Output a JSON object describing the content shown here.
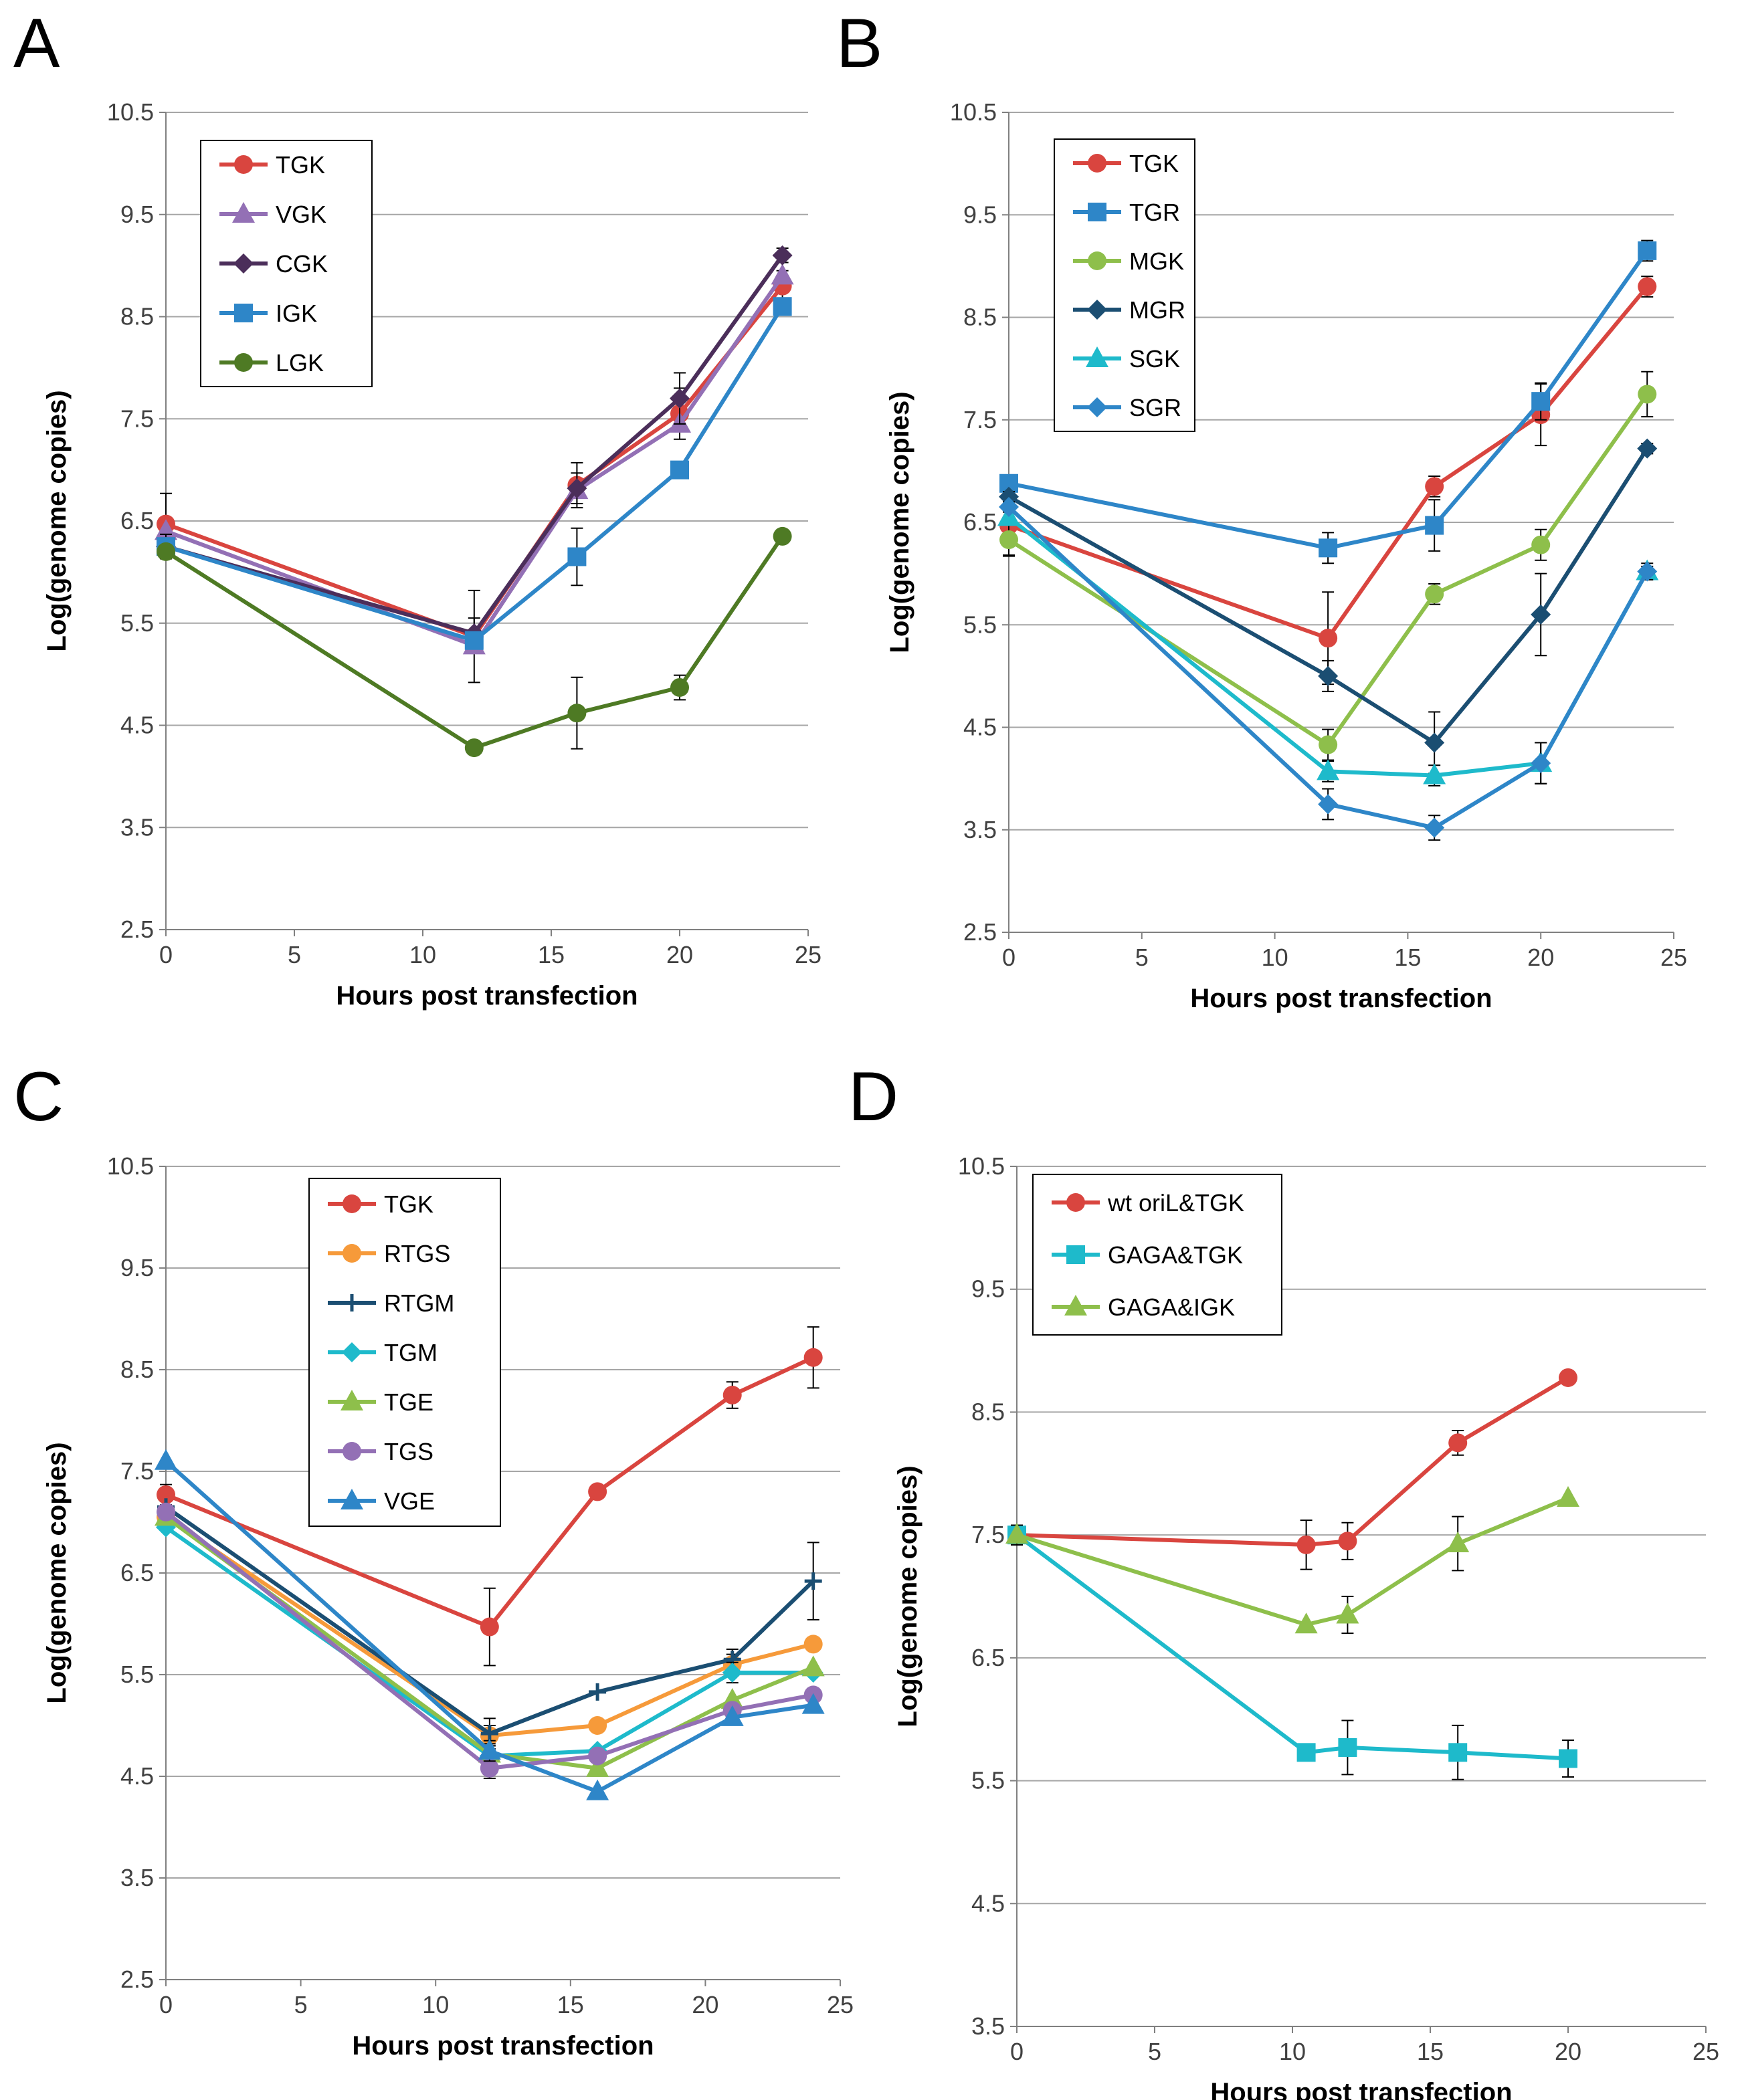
{
  "figure": {
    "panel_labels": [
      "A",
      "B",
      "C",
      "D"
    ]
  },
  "colors": {
    "red": "#D9453F",
    "purple": "#9370B5",
    "darkpurple": "#4B2E5A",
    "blue": "#2E86C8",
    "olive": "#4E7A24",
    "green": "#8EBF4B",
    "navy": "#1B4E72",
    "cyan": "#1EBACB",
    "orange": "#F69A3A",
    "grid": "#A6A6A6",
    "axis": "#808080"
  },
  "chart_data": [
    {
      "panel": "A",
      "type": "line",
      "xlabel": "Hours post transfection",
      "ylabel": "Log(genome copies)",
      "xlim": [
        0,
        25
      ],
      "xticks": [
        0,
        5,
        10,
        15,
        20,
        25
      ],
      "ylim": [
        2.5,
        10.5
      ],
      "yticks": [
        2.5,
        3.5,
        4.5,
        5.5,
        6.5,
        7.5,
        8.5,
        9.5,
        10.5
      ],
      "series": [
        {
          "name": "TGK",
          "color": "#D9453F",
          "marker": "circle",
          "x": [
            0,
            12,
            16,
            20,
            24
          ],
          "y": [
            6.47,
            5.37,
            6.85,
            7.55,
            8.8
          ],
          "err": [
            0.3,
            0.45,
            0.22,
            0.25,
            0.15
          ]
        },
        {
          "name": "VGK",
          "color": "#9370B5",
          "marker": "triangle",
          "x": [
            0,
            12,
            16,
            20,
            24
          ],
          "y": [
            6.4,
            5.28,
            6.8,
            7.45,
            8.9
          ],
          "err": [
            0,
            0,
            0,
            0,
            0
          ]
        },
        {
          "name": "CGK",
          "color": "#4B2E5A",
          "marker": "diamond",
          "x": [
            0,
            12,
            16,
            20,
            24
          ],
          "y": [
            6.25,
            5.4,
            6.82,
            7.7,
            9.1
          ],
          "err": [
            0.12,
            0.15,
            0.15,
            0.25,
            0.07
          ]
        },
        {
          "name": "IGK",
          "color": "#2E86C8",
          "marker": "square",
          "x": [
            0,
            12,
            16,
            20,
            24
          ],
          "y": [
            6.25,
            5.33,
            6.15,
            7.0,
            8.6
          ],
          "err": [
            0,
            0,
            0.28,
            0,
            0
          ]
        },
        {
          "name": "LGK",
          "color": "#4E7A24",
          "marker": "circle",
          "x": [
            0,
            12,
            16,
            20,
            24
          ],
          "y": [
            6.2,
            4.28,
            4.62,
            4.87,
            6.35
          ],
          "err": [
            0,
            0,
            0.35,
            0.12,
            0
          ]
        }
      ]
    },
    {
      "panel": "B",
      "type": "line",
      "xlabel": "Hours post transfection",
      "ylabel": "Log(genome copies)",
      "xlim": [
        0,
        25
      ],
      "xticks": [
        0,
        5,
        10,
        15,
        20,
        25
      ],
      "ylim": [
        2.5,
        10.5
      ],
      "yticks": [
        2.5,
        3.5,
        4.5,
        5.5,
        6.5,
        7.5,
        8.5,
        9.5,
        10.5
      ],
      "series": [
        {
          "name": "TGK",
          "color": "#D9453F",
          "marker": "circle",
          "x": [
            0,
            12,
            16,
            20,
            24
          ],
          "y": [
            6.47,
            5.37,
            6.85,
            7.55,
            8.8
          ],
          "err": [
            0.3,
            0.45,
            0.1,
            0.3,
            0.1
          ]
        },
        {
          "name": "TGR",
          "color": "#2E86C8",
          "marker": "square",
          "x": [
            0,
            12,
            16,
            20,
            24
          ],
          "y": [
            6.88,
            6.25,
            6.47,
            7.68,
            9.15
          ],
          "err": [
            0.05,
            0.15,
            0.25,
            0.18,
            0.1
          ]
        },
        {
          "name": "MGK",
          "color": "#8EBF4B",
          "marker": "circle",
          "x": [
            0,
            12,
            16,
            20,
            24
          ],
          "y": [
            6.33,
            4.33,
            5.8,
            6.28,
            7.75
          ],
          "err": [
            0.15,
            0.15,
            0.1,
            0.15,
            0.22
          ]
        },
        {
          "name": "MGR",
          "color": "#1B4E72",
          "marker": "diamond",
          "x": [
            0,
            12,
            16,
            20,
            24
          ],
          "y": [
            6.75,
            5.0,
            4.35,
            5.6,
            7.22
          ],
          "err": [
            0.05,
            0.15,
            0.3,
            0.4,
            0.05
          ]
        },
        {
          "name": "SGK",
          "color": "#1EBACB",
          "marker": "triangle",
          "x": [
            0,
            12,
            16,
            20,
            24
          ],
          "y": [
            6.55,
            4.07,
            4.03,
            4.15,
            6.02
          ],
          "err": [
            0.05,
            0.1,
            0.1,
            0.2,
            0.05
          ]
        },
        {
          "name": "SGR",
          "color": "#2E86C8",
          "marker": "diamond",
          "x": [
            0,
            12,
            16,
            20,
            24
          ],
          "y": [
            6.65,
            3.75,
            3.52,
            4.15,
            6.02
          ],
          "err": [
            0.05,
            0.15,
            0.12,
            0.2,
            0.08
          ]
        }
      ]
    },
    {
      "panel": "C",
      "type": "line",
      "xlabel": "Hours post transfection",
      "ylabel": "Log(genome copies)",
      "xlim": [
        0,
        25
      ],
      "xticks": [
        0,
        5,
        10,
        15,
        20,
        25
      ],
      "ylim": [
        2.5,
        10.5
      ],
      "yticks": [
        2.5,
        3.5,
        4.5,
        5.5,
        6.5,
        7.5,
        8.5,
        9.5,
        10.5
      ],
      "series": [
        {
          "name": "TGK",
          "color": "#D9453F",
          "marker": "circle",
          "x": [
            0,
            12,
            16,
            21,
            24
          ],
          "y": [
            7.27,
            5.97,
            7.3,
            8.25,
            8.62
          ],
          "err": [
            0.1,
            0.38,
            0,
            0.13,
            0.3
          ]
        },
        {
          "name": "RTGS",
          "color": "#F69A3A",
          "marker": "circle",
          "x": [
            0,
            12,
            16,
            21,
            24
          ],
          "y": [
            7.05,
            4.9,
            5.0,
            5.6,
            5.8
          ],
          "err": [
            0,
            0.1,
            0,
            0.1,
            0
          ]
        },
        {
          "name": "RTGM",
          "color": "#1B4E72",
          "marker": "plus",
          "x": [
            0,
            12,
            16,
            21,
            24
          ],
          "y": [
            7.15,
            4.92,
            5.33,
            5.65,
            6.42
          ],
          "err": [
            0,
            0.15,
            0,
            0.1,
            0.38
          ]
        },
        {
          "name": "TGM",
          "color": "#1EBACB",
          "marker": "diamond",
          "x": [
            0,
            12,
            16,
            21,
            24
          ],
          "y": [
            6.95,
            4.7,
            4.75,
            5.52,
            5.52
          ],
          "err": [
            0,
            0.1,
            0,
            0.1,
            0
          ]
        },
        {
          "name": "TGE",
          "color": "#8EBF4B",
          "marker": "triangle",
          "x": [
            0,
            12,
            16,
            21,
            24
          ],
          "y": [
            7.05,
            4.72,
            4.58,
            5.25,
            5.57
          ],
          "err": [
            0,
            0.1,
            0,
            0,
            0
          ]
        },
        {
          "name": "TGS",
          "color": "#9370B5",
          "marker": "circle",
          "x": [
            0,
            12,
            16,
            21,
            24
          ],
          "y": [
            7.1,
            4.58,
            4.7,
            5.15,
            5.3
          ],
          "err": [
            0,
            0.1,
            0,
            0,
            0
          ]
        },
        {
          "name": "VGE",
          "color": "#2E86C8",
          "marker": "triangle",
          "x": [
            0,
            12,
            16,
            21,
            24
          ],
          "y": [
            7.6,
            4.75,
            4.35,
            5.08,
            5.2
          ],
          "err": [
            0,
            0.1,
            0,
            0,
            0
          ]
        }
      ]
    },
    {
      "panel": "D",
      "type": "line",
      "xlabel": "Hours post transfection",
      "ylabel": "Log(genome copies)",
      "xlim": [
        0,
        25
      ],
      "xticks": [
        0,
        5,
        10,
        15,
        20,
        25
      ],
      "ylim": [
        3.5,
        10.5
      ],
      "yticks": [
        3.5,
        4.5,
        5.5,
        6.5,
        7.5,
        8.5,
        9.5,
        10.5
      ],
      "series": [
        {
          "name": "wt oriL&TGK",
          "color": "#D9453F",
          "marker": "circle",
          "x": [
            0,
            10.5,
            12,
            16,
            20
          ],
          "y": [
            7.5,
            7.42,
            7.45,
            8.25,
            8.78
          ],
          "err": [
            0.08,
            0.2,
            0.15,
            0.1,
            0
          ]
        },
        {
          "name": "GAGA&TGK",
          "color": "#1EBACB",
          "marker": "square",
          "x": [
            0,
            10.5,
            12,
            16,
            20
          ],
          "y": [
            7.5,
            5.73,
            5.77,
            5.73,
            5.68
          ],
          "err": [
            0.08,
            0,
            0.22,
            0.22,
            0.15
          ]
        },
        {
          "name": "GAGA&IGK",
          "color": "#8EBF4B",
          "marker": "triangle",
          "x": [
            0,
            10.5,
            12,
            16,
            20
          ],
          "y": [
            7.5,
            6.77,
            6.85,
            7.43,
            7.8
          ],
          "err": [
            0.08,
            0,
            0.15,
            0.22,
            0
          ]
        }
      ]
    }
  ]
}
